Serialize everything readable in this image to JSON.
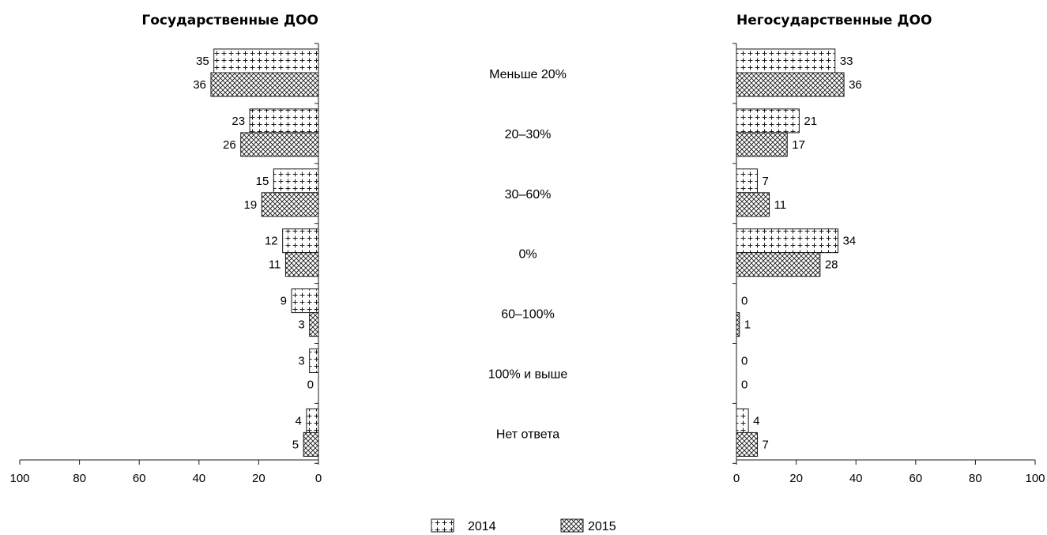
{
  "legend": {
    "items": [
      {
        "label": "2014"
      },
      {
        "label": "2015"
      }
    ]
  },
  "chart_data": [
    {
      "type": "bar",
      "orientation": "horizontal",
      "direction": "right-to-left",
      "title": "Государственные ДОО",
      "categories": [
        "Меньше 20%",
        "20–30%",
        "30–60%",
        "0%",
        "60–100%",
        "100% и выше",
        "Нет ответа"
      ],
      "series": [
        {
          "name": "2014",
          "values": [
            35,
            23,
            15,
            12,
            9,
            3,
            4
          ]
        },
        {
          "name": "2015",
          "values": [
            36,
            26,
            19,
            11,
            3,
            0,
            5
          ]
        }
      ],
      "xlim": [
        0,
        100
      ],
      "xticks": [
        100,
        80,
        60,
        40,
        20,
        0
      ]
    },
    {
      "type": "bar",
      "orientation": "horizontal",
      "direction": "left-to-right",
      "title": "Негосударственные ДОО",
      "categories": [
        "Меньше 20%",
        "20–30%",
        "30–60%",
        "0%",
        "60–100%",
        "100% и выше",
        "Нет ответа"
      ],
      "series": [
        {
          "name": "2014",
          "values": [
            33,
            21,
            7,
            34,
            0,
            0,
            4
          ]
        },
        {
          "name": "2015",
          "values": [
            36,
            17,
            11,
            28,
            1,
            0,
            7
          ]
        }
      ],
      "xlim": [
        0,
        100
      ],
      "xticks": [
        0,
        20,
        40,
        60,
        80,
        100
      ]
    }
  ]
}
